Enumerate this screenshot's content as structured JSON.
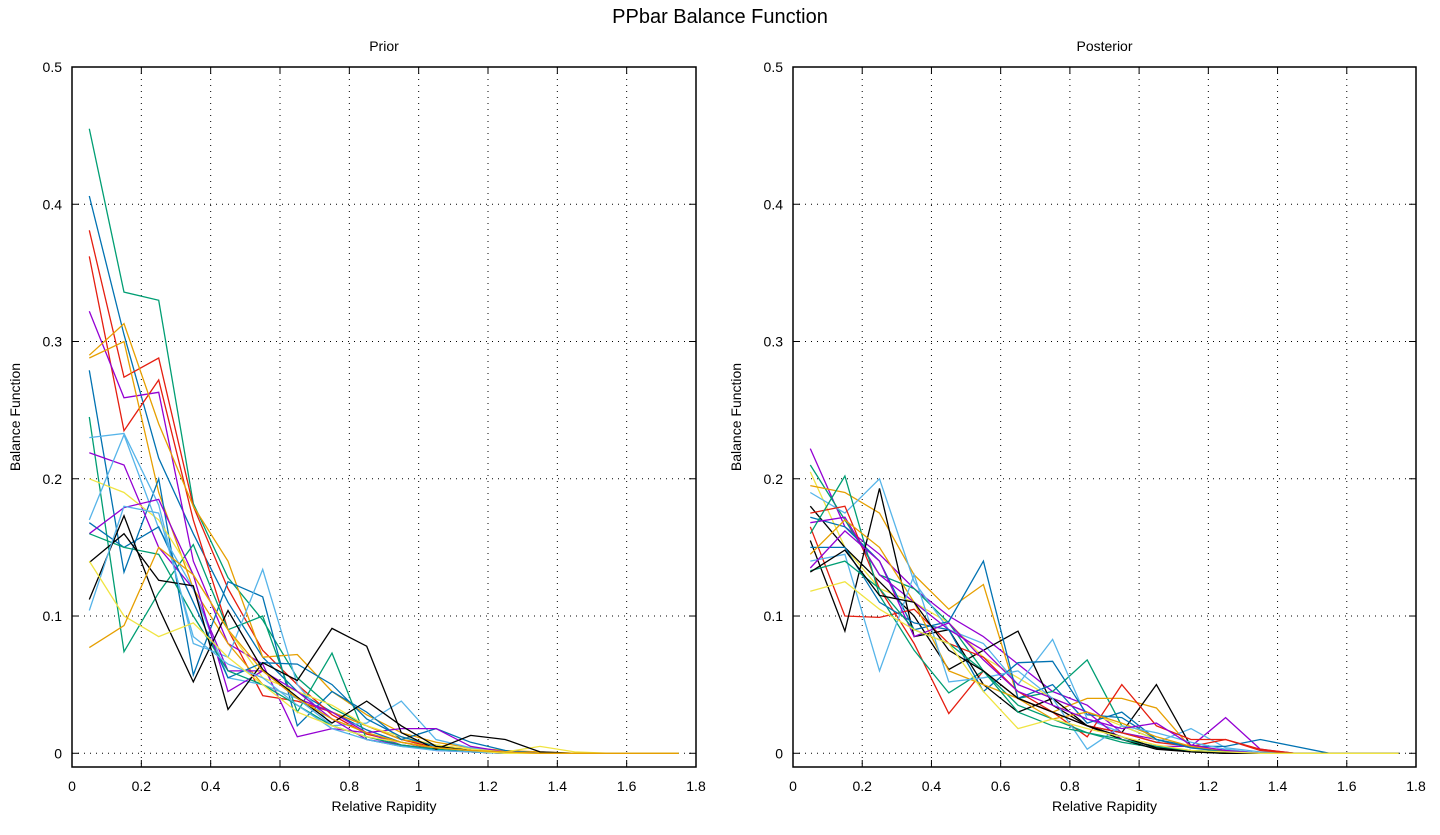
{
  "title": "PPbar Balance Function",
  "chart_data": [
    {
      "type": "line",
      "title": "Prior",
      "xlabel": "Relative Rapidity",
      "ylabel": "Balance Function",
      "xlim": [
        0,
        1.8
      ],
      "ylim": [
        -0.01,
        0.5
      ],
      "xticks": [
        0,
        0.2,
        0.4,
        0.6,
        0.8,
        1,
        1.2,
        1.4,
        1.6,
        1.8
      ],
      "xtick_labels": [
        "0",
        "0.2",
        "0.4",
        "0.6",
        "0.8",
        "1",
        "1.2",
        "1.4",
        "1.6",
        "1.8"
      ],
      "yticks": [
        0,
        0.1,
        0.2,
        0.3,
        0.4,
        0.5
      ],
      "ytick_labels": [
        "0",
        "0.1",
        "0.2",
        "0.3",
        "0.4",
        "0.5"
      ],
      "grid": true,
      "x": [
        0.05,
        0.15,
        0.25,
        0.35,
        0.45,
        0.55,
        0.65,
        0.75,
        0.85,
        0.95,
        1.05,
        1.15,
        1.25,
        1.35,
        1.45,
        1.55,
        1.65,
        1.75
      ],
      "series": [
        {
          "color": "#009e73",
          "values": [
            0.455,
            0.336,
            0.33,
            0.182,
            0.128,
            0.097,
            0.055,
            0.033,
            0.02,
            0.01,
            0.006,
            0.002,
            0.001,
            0.0,
            0.0,
            0.0,
            0.0,
            0.0
          ]
        },
        {
          "color": "#0072b2",
          "values": [
            0.406,
            0.305,
            0.215,
            0.16,
            0.11,
            0.07,
            0.045,
            0.03,
            0.017,
            0.008,
            0.004,
            0.002,
            0.001,
            0.0,
            0.0,
            0.0,
            0.0,
            0.0
          ]
        },
        {
          "color": "#e51e10",
          "values": [
            0.381,
            0.274,
            0.288,
            0.18,
            0.12,
            0.075,
            0.05,
            0.028,
            0.014,
            0.008,
            0.003,
            0.001,
            0.0,
            0.0,
            0.0,
            0.0,
            0.0,
            0.0
          ]
        },
        {
          "color": "#e51e10",
          "values": [
            0.362,
            0.235,
            0.272,
            0.17,
            0.09,
            0.042,
            0.038,
            0.03,
            0.02,
            0.01,
            0.004,
            0.002,
            0.0,
            0.0,
            0.0,
            0.0,
            0.0,
            0.0
          ]
        },
        {
          "color": "#9400d3",
          "values": [
            0.322,
            0.259,
            0.263,
            0.14,
            0.08,
            0.065,
            0.012,
            0.018,
            0.015,
            0.006,
            0.002,
            0.001,
            0.0,
            0.0,
            0.0,
            0.0,
            0.0,
            0.0
          ]
        },
        {
          "color": "#e69f00",
          "values": [
            0.29,
            0.313,
            0.24,
            0.18,
            0.14,
            0.07,
            0.072,
            0.045,
            0.028,
            0.015,
            0.008,
            0.004,
            0.002,
            0.001,
            0.0,
            0.0,
            0.0,
            0.0
          ]
        },
        {
          "color": "#e69f00",
          "values": [
            0.288,
            0.3,
            0.19,
            0.12,
            0.08,
            0.05,
            0.04,
            0.03,
            0.02,
            0.01,
            0.006,
            0.003,
            0.001,
            0.0,
            0.0,
            0.0,
            0.0,
            0.0
          ]
        },
        {
          "color": "#0072b2",
          "values": [
            0.279,
            0.132,
            0.2,
            0.057,
            0.125,
            0.114,
            0.02,
            0.045,
            0.03,
            0.01,
            0.018,
            0.008,
            0.002,
            0.0,
            0.0,
            0.0,
            0.0,
            0.0
          ]
        },
        {
          "color": "#009e73",
          "values": [
            0.245,
            0.074,
            0.117,
            0.152,
            0.09,
            0.1,
            0.03,
            0.073,
            0.01,
            0.005,
            0.003,
            0.001,
            0.0,
            0.0,
            0.0,
            0.0,
            0.0,
            0.0
          ]
        },
        {
          "color": "#56b4e9",
          "values": [
            0.23,
            0.233,
            0.181,
            0.08,
            0.07,
            0.134,
            0.05,
            0.02,
            0.022,
            0.038,
            0.01,
            0.004,
            0.001,
            0.0,
            0.0,
            0.0,
            0.0,
            0.0
          ]
        },
        {
          "color": "#9400d3",
          "values": [
            0.219,
            0.21,
            0.15,
            0.12,
            0.06,
            0.06,
            0.04,
            0.03,
            0.015,
            0.018,
            0.018,
            0.005,
            0.001,
            0.0,
            0.0,
            0.0,
            0.0,
            0.0
          ]
        },
        {
          "color": "#f0e442",
          "values": [
            0.2,
            0.19,
            0.17,
            0.13,
            0.09,
            0.055,
            0.045,
            0.035,
            0.02,
            0.012,
            0.006,
            0.003,
            0.001,
            0.005,
            0.001,
            0.0,
            0.0,
            0.0
          ]
        },
        {
          "color": "#56b4e9",
          "values": [
            0.17,
            0.232,
            0.164,
            0.12,
            0.055,
            0.05,
            0.04,
            0.02,
            0.012,
            0.006,
            0.003,
            0.002,
            0.0,
            0.0,
            0.0,
            0.0,
            0.0,
            0.0
          ]
        },
        {
          "color": "#0072b2",
          "values": [
            0.168,
            0.15,
            0.165,
            0.11,
            0.055,
            0.066,
            0.065,
            0.05,
            0.025,
            0.012,
            0.005,
            0.002,
            0.0,
            0.0,
            0.0,
            0.0,
            0.0,
            0.0
          ]
        },
        {
          "color": "#9400d3",
          "values": [
            0.16,
            0.179,
            0.185,
            0.13,
            0.045,
            0.06,
            0.045,
            0.025,
            0.01,
            0.006,
            0.003,
            0.001,
            0.0,
            0.0,
            0.0,
            0.0,
            0.0,
            0.0
          ]
        },
        {
          "color": "#009e73",
          "values": [
            0.16,
            0.15,
            0.145,
            0.1,
            0.06,
            0.05,
            0.035,
            0.02,
            0.012,
            0.006,
            0.003,
            0.001,
            0.0,
            0.0,
            0.0,
            0.0,
            0.0,
            0.0
          ]
        },
        {
          "color": "#000000",
          "values": [
            0.139,
            0.16,
            0.126,
            0.122,
            0.032,
            0.066,
            0.053,
            0.091,
            0.078,
            0.015,
            0.003,
            0.013,
            0.01,
            0.001,
            0.0,
            0.0,
            0.0,
            0.0
          ]
        },
        {
          "color": "#000000",
          "values": [
            0.112,
            0.173,
            0.106,
            0.052,
            0.104,
            0.061,
            0.041,
            0.022,
            0.038,
            0.02,
            0.005,
            0.002,
            0.0,
            0.0,
            0.0,
            0.0,
            0.0,
            0.0
          ]
        },
        {
          "color": "#56b4e9",
          "values": [
            0.104,
            0.18,
            0.175,
            0.085,
            0.065,
            0.055,
            0.035,
            0.018,
            0.01,
            0.005,
            0.002,
            0.001,
            0.0,
            0.0,
            0.0,
            0.0,
            0.0,
            0.0
          ]
        },
        {
          "color": "#f0e442",
          "values": [
            0.14,
            0.1,
            0.085,
            0.095,
            0.07,
            0.05,
            0.03,
            0.02,
            0.012,
            0.008,
            0.004,
            0.002,
            0.0,
            0.0,
            0.0,
            0.0,
            0.0,
            0.0
          ]
        },
        {
          "color": "#e69f00",
          "values": [
            0.077,
            0.093,
            0.15,
            0.13,
            0.09,
            0.06,
            0.04,
            0.025,
            0.015,
            0.008,
            0.004,
            0.002,
            0.001,
            0.0,
            0.0,
            0.0,
            0.0,
            0.0
          ]
        }
      ]
    },
    {
      "type": "line",
      "title": "Posterior",
      "xlabel": "Relative Rapidity",
      "ylabel": "Balance Function",
      "xlim": [
        0,
        1.8
      ],
      "ylim": [
        -0.01,
        0.5
      ],
      "xticks": [
        0,
        0.2,
        0.4,
        0.6,
        0.8,
        1,
        1.2,
        1.4,
        1.6,
        1.8
      ],
      "xtick_labels": [
        "0",
        "0.2",
        "0.4",
        "0.6",
        "0.8",
        "1",
        "1.2",
        "1.4",
        "1.6",
        "1.8"
      ],
      "yticks": [
        0,
        0.1,
        0.2,
        0.3,
        0.4,
        0.5
      ],
      "ytick_labels": [
        "0",
        "0.1",
        "0.2",
        "0.3",
        "0.4",
        "0.5"
      ],
      "grid": true,
      "x": [
        0.05,
        0.15,
        0.25,
        0.35,
        0.45,
        0.55,
        0.65,
        0.75,
        0.85,
        0.95,
        1.05,
        1.15,
        1.25,
        1.35,
        1.45,
        1.55,
        1.65,
        1.75
      ],
      "series": [
        {
          "color": "#9400d3",
          "values": [
            0.222,
            0.165,
            0.145,
            0.12,
            0.1,
            0.085,
            0.065,
            0.045,
            0.035,
            0.015,
            0.01,
            0.005,
            0.026,
            0.003,
            0.0,
            0.0,
            0.0,
            0.0
          ]
        },
        {
          "color": "#009e73",
          "values": [
            0.21,
            0.17,
            0.13,
            0.12,
            0.095,
            0.06,
            0.04,
            0.045,
            0.068,
            0.02,
            0.01,
            0.004,
            0.002,
            0.0,
            0.0,
            0.0,
            0.0,
            0.0
          ]
        },
        {
          "color": "#f0e442",
          "values": [
            0.205,
            0.15,
            0.12,
            0.11,
            0.095,
            0.07,
            0.055,
            0.04,
            0.03,
            0.02,
            0.01,
            0.005,
            0.002,
            0.0,
            0.0,
            0.0,
            0.0,
            0.0
          ]
        },
        {
          "color": "#e69f00",
          "values": [
            0.195,
            0.19,
            0.175,
            0.13,
            0.105,
            0.123,
            0.04,
            0.03,
            0.04,
            0.04,
            0.033,
            0.004,
            0.002,
            0.0,
            0.0,
            0.0,
            0.0,
            0.0
          ]
        },
        {
          "color": "#56b4e9",
          "values": [
            0.19,
            0.175,
            0.2,
            0.125,
            0.09,
            0.08,
            0.05,
            0.083,
            0.025,
            0.015,
            0.008,
            0.018,
            0.004,
            0.001,
            0.0,
            0.0,
            0.0,
            0.0
          ]
        },
        {
          "color": "#000000",
          "values": [
            0.18,
            0.15,
            0.125,
            0.1,
            0.061,
            0.075,
            0.089,
            0.035,
            0.02,
            0.015,
            0.05,
            0.005,
            0.002,
            0.0,
            0.0,
            0.0,
            0.0,
            0.0
          ]
        },
        {
          "color": "#e51e10",
          "values": [
            0.175,
            0.18,
            0.12,
            0.08,
            0.029,
            0.06,
            0.04,
            0.03,
            0.012,
            0.05,
            0.02,
            0.01,
            0.01,
            0.002,
            0.0,
            0.0,
            0.0,
            0.0
          ]
        },
        {
          "color": "#0072b2",
          "values": [
            0.172,
            0.165,
            0.14,
            0.09,
            0.096,
            0.14,
            0.04,
            0.05,
            0.022,
            0.03,
            0.01,
            0.005,
            0.005,
            0.01,
            0.005,
            0.0,
            0.0,
            0.0
          ]
        },
        {
          "color": "#9400d3",
          "values": [
            0.168,
            0.172,
            0.13,
            0.11,
            0.09,
            0.075,
            0.05,
            0.04,
            0.03,
            0.01,
            0.005,
            0.005,
            0.002,
            0.0,
            0.0,
            0.0,
            0.0,
            0.0
          ]
        },
        {
          "color": "#e51e10",
          "values": [
            0.165,
            0.1,
            0.099,
            0.105,
            0.08,
            0.07,
            0.045,
            0.03,
            0.02,
            0.015,
            0.008,
            0.005,
            0.01,
            0.003,
            0.0,
            0.0,
            0.0,
            0.0
          ]
        },
        {
          "color": "#009e73",
          "values": [
            0.16,
            0.202,
            0.115,
            0.075,
            0.044,
            0.06,
            0.035,
            0.025,
            0.015,
            0.008,
            0.004,
            0.002,
            0.001,
            0.0,
            0.0,
            0.0,
            0.0,
            0.0
          ]
        },
        {
          "color": "#000000",
          "values": [
            0.155,
            0.089,
            0.193,
            0.085,
            0.09,
            0.05,
            0.03,
            0.04,
            0.02,
            0.01,
            0.003,
            0.001,
            0.0,
            0.0,
            0.0,
            0.0,
            0.0,
            0.0
          ]
        },
        {
          "color": "#0072b2",
          "values": [
            0.15,
            0.15,
            0.11,
            0.095,
            0.09,
            0.045,
            0.066,
            0.067,
            0.028,
            0.026,
            0.01,
            0.004,
            0.001,
            0.0,
            0.0,
            0.0,
            0.0,
            0.0
          ]
        },
        {
          "color": "#e69f00",
          "values": [
            0.145,
            0.17,
            0.15,
            0.11,
            0.06,
            0.05,
            0.04,
            0.025,
            0.03,
            0.022,
            0.012,
            0.005,
            0.002,
            0.0,
            0.0,
            0.0,
            0.0,
            0.0
          ]
        },
        {
          "color": "#56b4e9",
          "values": [
            0.14,
            0.145,
            0.06,
            0.13,
            0.052,
            0.055,
            0.06,
            0.04,
            0.003,
            0.02,
            0.015,
            0.008,
            0.003,
            0.0,
            0.0,
            0.0,
            0.0,
            0.0
          ]
        },
        {
          "color": "#9400d3",
          "values": [
            0.135,
            0.162,
            0.14,
            0.085,
            0.095,
            0.068,
            0.045,
            0.035,
            0.025,
            0.018,
            0.022,
            0.006,
            0.002,
            0.0,
            0.0,
            0.0,
            0.0,
            0.0
          ]
        },
        {
          "color": "#009e73",
          "values": [
            0.133,
            0.14,
            0.12,
            0.09,
            0.08,
            0.06,
            0.03,
            0.02,
            0.015,
            0.01,
            0.005,
            0.002,
            0.001,
            0.0,
            0.0,
            0.0,
            0.0,
            0.0
          ]
        },
        {
          "color": "#000000",
          "values": [
            0.132,
            0.148,
            0.115,
            0.11,
            0.075,
            0.06,
            0.04,
            0.03,
            0.02,
            0.012,
            0.004,
            0.001,
            0.0,
            0.0,
            0.0,
            0.0,
            0.0,
            0.0
          ]
        },
        {
          "color": "#f0e442",
          "values": [
            0.118,
            0.125,
            0.105,
            0.09,
            0.08,
            0.045,
            0.018,
            0.025,
            0.018,
            0.012,
            0.006,
            0.002,
            0.001,
            0.0,
            0.0,
            0.0,
            0.0,
            0.0
          ]
        }
      ]
    }
  ]
}
